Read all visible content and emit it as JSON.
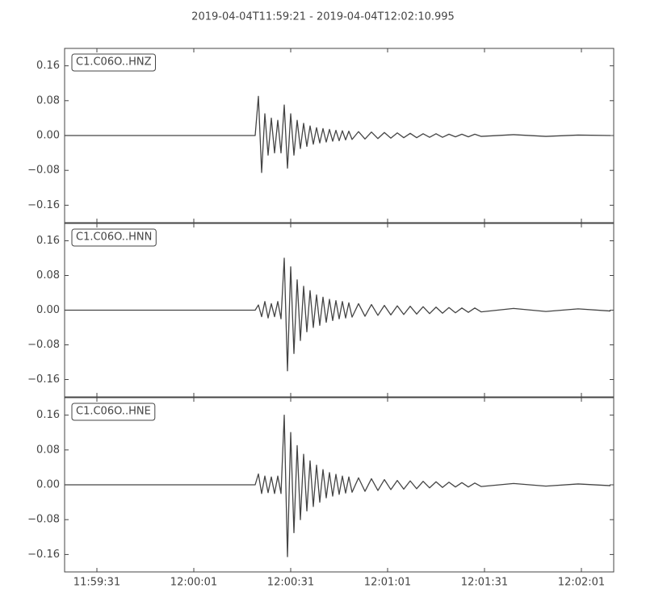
{
  "title": "2019-04-04T11:59:21  -  2019-04-04T12:02:10.995",
  "chart_data": [
    {
      "type": "line",
      "label": "C1.C06O..HNZ",
      "x": [
        "11:59:21",
        "12:00:20",
        "12:00:21",
        "12:00:22",
        "12:00:23",
        "12:00:24",
        "12:00:25",
        "12:00:26",
        "12:00:27",
        "12:00:28",
        "12:00:29",
        "12:00:30",
        "12:00:31",
        "12:00:32",
        "12:00:33",
        "12:00:34",
        "12:00:35",
        "12:00:36",
        "12:00:37",
        "12:00:38",
        "12:00:39",
        "12:00:40",
        "12:00:41",
        "12:00:42",
        "12:00:43",
        "12:00:44",
        "12:00:45",
        "12:00:46",
        "12:00:47",
        "12:00:48",
        "12:00:49",
        "12:00:50",
        "12:00:52",
        "12:00:54",
        "12:00:56",
        "12:00:58",
        "12:01:00",
        "12:01:02",
        "12:01:04",
        "12:01:06",
        "12:01:08",
        "12:01:10",
        "12:01:12",
        "12:01:14",
        "12:01:16",
        "12:01:18",
        "12:01:20",
        "12:01:22",
        "12:01:24",
        "12:01:26",
        "12:01:28",
        "12:01:30",
        "12:01:40",
        "12:01:50",
        "12:02:00",
        "12:02:10"
      ],
      "series": [
        {
          "color": "#444444",
          "values": [
            0,
            0,
            0.09,
            -0.085,
            0.05,
            -0.045,
            0.04,
            -0.04,
            0.035,
            -0.04,
            0.07,
            -0.075,
            0.05,
            -0.045,
            0.035,
            -0.03,
            0.028,
            -0.025,
            0.022,
            -0.02,
            0.018,
            -0.017,
            0.016,
            -0.015,
            0.014,
            -0.013,
            0.012,
            -0.012,
            0.011,
            -0.01,
            0.01,
            -0.009,
            0.009,
            -0.008,
            0.008,
            -0.007,
            0.007,
            -0.006,
            0.006,
            -0.005,
            0.005,
            -0.005,
            0.004,
            -0.004,
            0.004,
            -0.004,
            0.003,
            -0.003,
            0.003,
            -0.003,
            0.003,
            -0.002,
            0.002,
            -0.002,
            0.001,
            0
          ]
        }
      ],
      "xlim": [
        "11:59:21",
        "12:02:11"
      ],
      "ylim": [
        -0.2,
        0.2
      ],
      "yticks": [
        {
          "value": -0.16,
          "label": "−0.16"
        },
        {
          "value": -0.08,
          "label": "−0.08"
        },
        {
          "value": 0,
          "label": "0.00"
        },
        0.08,
        0.16
      ]
    },
    {
      "type": "line",
      "label": "C1.C06O..HNN",
      "x": [
        "11:59:21",
        "12:00:20",
        "12:00:21",
        "12:00:22",
        "12:00:23",
        "12:00:24",
        "12:00:25",
        "12:00:26",
        "12:00:27",
        "12:00:28",
        "12:00:29",
        "12:00:30",
        "12:00:31",
        "12:00:32",
        "12:00:33",
        "12:00:34",
        "12:00:35",
        "12:00:36",
        "12:00:37",
        "12:00:38",
        "12:00:39",
        "12:00:40",
        "12:00:41",
        "12:00:42",
        "12:00:43",
        "12:00:44",
        "12:00:45",
        "12:00:46",
        "12:00:47",
        "12:00:48",
        "12:00:49",
        "12:00:50",
        "12:00:52",
        "12:00:54",
        "12:00:56",
        "12:00:58",
        "12:01:00",
        "12:01:02",
        "12:01:04",
        "12:01:06",
        "12:01:08",
        "12:01:10",
        "12:01:12",
        "12:01:14",
        "12:01:16",
        "12:01:18",
        "12:01:20",
        "12:01:22",
        "12:01:24",
        "12:01:26",
        "12:01:28",
        "12:01:30",
        "12:01:40",
        "12:01:50",
        "12:02:00",
        "12:02:10"
      ],
      "series": [
        {
          "color": "#444444",
          "values": [
            0,
            0,
            0.012,
            -0.015,
            0.02,
            -0.018,
            0.015,
            -0.015,
            0.02,
            -0.02,
            0.12,
            -0.14,
            0.1,
            -0.1,
            0.07,
            -0.07,
            0.055,
            -0.05,
            0.045,
            -0.04,
            0.035,
            -0.035,
            0.03,
            -0.028,
            0.025,
            -0.024,
            0.022,
            -0.02,
            0.02,
            -0.018,
            0.017,
            -0.016,
            0.015,
            -0.014,
            0.013,
            -0.012,
            0.011,
            -0.011,
            0.01,
            -0.01,
            0.009,
            -0.009,
            0.008,
            -0.008,
            0.007,
            -0.007,
            0.006,
            -0.006,
            0.005,
            -0.005,
            0.005,
            -0.004,
            0.004,
            -0.003,
            0.003,
            -0.002
          ]
        }
      ],
      "xlim": [
        "11:59:21",
        "12:02:11"
      ],
      "ylim": [
        -0.2,
        0.2
      ],
      "yticks": [
        {
          "value": -0.16,
          "label": "−0.16"
        },
        {
          "value": -0.08,
          "label": "−0.08"
        },
        {
          "value": 0,
          "label": "0.00"
        },
        0.08,
        0.16
      ]
    },
    {
      "type": "line",
      "label": "C1.C06O..HNE",
      "x": [
        "11:59:21",
        "12:00:20",
        "12:00:21",
        "12:00:22",
        "12:00:23",
        "12:00:24",
        "12:00:25",
        "12:00:26",
        "12:00:27",
        "12:00:28",
        "12:00:29",
        "12:00:30",
        "12:00:31",
        "12:00:32",
        "12:00:33",
        "12:00:34",
        "12:00:35",
        "12:00:36",
        "12:00:37",
        "12:00:38",
        "12:00:39",
        "12:00:40",
        "12:00:41",
        "12:00:42",
        "12:00:43",
        "12:00:44",
        "12:00:45",
        "12:00:46",
        "12:00:47",
        "12:00:48",
        "12:00:49",
        "12:00:50",
        "12:00:52",
        "12:00:54",
        "12:00:56",
        "12:00:58",
        "12:01:00",
        "12:01:02",
        "12:01:04",
        "12:01:06",
        "12:01:08",
        "12:01:10",
        "12:01:12",
        "12:01:14",
        "12:01:16",
        "12:01:18",
        "12:01:20",
        "12:01:22",
        "12:01:24",
        "12:01:26",
        "12:01:28",
        "12:01:30",
        "12:01:40",
        "12:01:50",
        "12:02:00",
        "12:02:10"
      ],
      "series": [
        {
          "color": "#444444",
          "values": [
            0,
            0,
            0.025,
            -0.02,
            0.02,
            -0.018,
            0.018,
            -0.02,
            0.02,
            -0.02,
            0.16,
            -0.165,
            0.12,
            -0.11,
            0.09,
            -0.08,
            0.07,
            -0.06,
            0.055,
            -0.05,
            0.045,
            -0.04,
            0.035,
            -0.03,
            0.028,
            -0.026,
            0.024,
            -0.022,
            0.02,
            -0.019,
            0.018,
            -0.017,
            0.016,
            -0.015,
            0.014,
            -0.013,
            0.012,
            -0.011,
            0.01,
            -0.01,
            0.009,
            -0.009,
            0.008,
            -0.007,
            0.007,
            -0.006,
            0.006,
            -0.005,
            0.005,
            -0.005,
            0.004,
            -0.004,
            0.003,
            -0.003,
            0.002,
            -0.002
          ]
        }
      ],
      "xlim": [
        "11:59:21",
        "12:02:11"
      ],
      "ylim": [
        -0.2,
        0.2
      ],
      "yticks": [
        {
          "value": -0.16,
          "label": "−0.16"
        },
        {
          "value": -0.08,
          "label": "−0.08"
        },
        {
          "value": 0,
          "label": "0.00"
        },
        0.08,
        0.16
      ],
      "xticks": [
        "11:59:31",
        "12:00:01",
        "12:00:31",
        "12:01:01",
        "12:01:31",
        "12:02:01"
      ]
    }
  ]
}
